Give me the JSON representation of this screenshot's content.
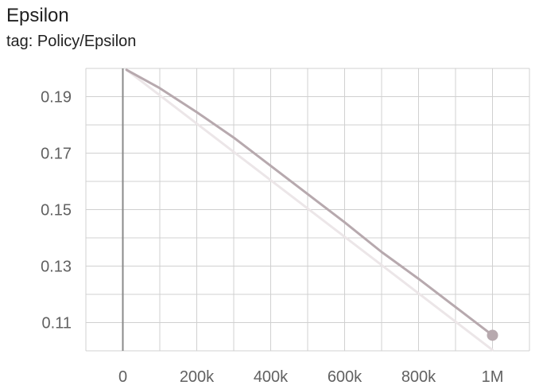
{
  "card": {
    "title": "Epsilon",
    "tag": "tag: Policy/Epsilon"
  },
  "chart_data": {
    "type": "line",
    "title": "Epsilon",
    "subtitle": "tag: Policy/Epsilon",
    "xlabel": "",
    "ylabel": "",
    "xlim": [
      -100000,
      1100000
    ],
    "ylim": [
      0.1,
      0.2
    ],
    "x_ticks": [
      0,
      200000,
      400000,
      600000,
      800000,
      1000000
    ],
    "x_tick_labels": [
      "0",
      "200k",
      "400k",
      "600k",
      "800k",
      "1M"
    ],
    "y_ticks": [
      0.11,
      0.13,
      0.15,
      0.17,
      0.19
    ],
    "y_tick_labels": [
      "0.11",
      "0.13",
      "0.15",
      "0.17",
      "0.19"
    ],
    "grid": true,
    "colors": {
      "smoothed": "#b7a9ae",
      "raw": "#ece6e8",
      "grid": "#d0d0d0",
      "zero_line": "#8a8a8a"
    },
    "series": [
      {
        "role": "smoothed",
        "x": [
          10000,
          100000,
          200000,
          300000,
          400000,
          500000,
          600000,
          700000,
          800000,
          900000,
          1000000
        ],
        "y": [
          0.1995,
          0.193,
          0.1845,
          0.1755,
          0.1655,
          0.1555,
          0.1455,
          0.135,
          0.1255,
          0.1155,
          0.1055
        ]
      },
      {
        "role": "raw",
        "x": [
          10000,
          1000000
        ],
        "y": [
          0.1995,
          0.1003
        ]
      }
    ],
    "endpoint": {
      "x": 1000000,
      "y": 0.1055
    }
  }
}
